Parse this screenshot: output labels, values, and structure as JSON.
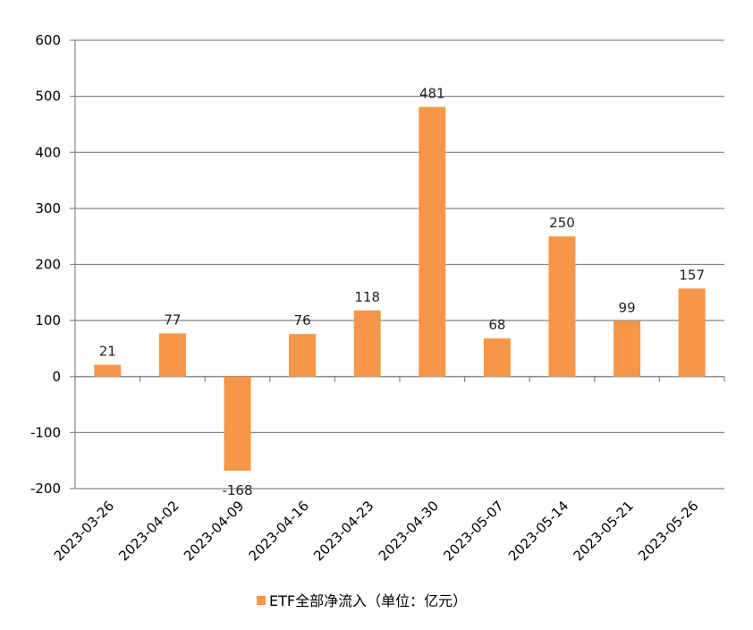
{
  "chart_data": {
    "type": "bar",
    "categories": [
      "2023-03-26",
      "2023-04-02",
      "2023-04-09",
      "2023-04-16",
      "2023-04-23",
      "2023-04-30",
      "2023-05-07",
      "2023-05-14",
      "2023-05-21",
      "2023-05-26"
    ],
    "series": [
      {
        "name": "ETF全部净流入（单位：亿元）",
        "values": [
          21,
          77,
          -168,
          76,
          118,
          481,
          68,
          250,
          99,
          157
        ],
        "color": "#F79646"
      }
    ],
    "data_labels": [
      "21",
      "77",
      "-168",
      "76",
      "118",
      "481",
      "68",
      "250",
      "99",
      "157"
    ],
    "ylim": [
      -200,
      600
    ],
    "yticks": [
      600,
      500,
      400,
      300,
      200,
      100,
      0,
      -100,
      -200
    ],
    "ytick_labels": [
      "600",
      "500",
      "400",
      "300",
      "200",
      "100",
      "0",
      "-100",
      "-200"
    ],
    "grid": true,
    "legend_position": "bottom",
    "title": "",
    "xlabel": "",
    "ylabel": ""
  }
}
